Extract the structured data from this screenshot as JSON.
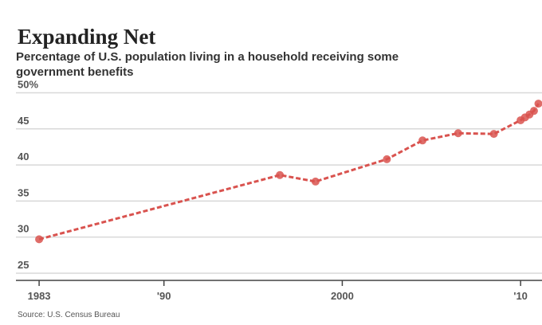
{
  "chart_data": {
    "type": "line",
    "title": "Expanding Net",
    "subtitle": "Percentage of U.S. population living in a household receiving some government benefits",
    "source": "Source: U.S. Census Bureau",
    "x": [
      1983,
      1996.5,
      1998.5,
      2002.5,
      2004.5,
      2006.5,
      2008.5,
      2010,
      2010.25,
      2010.5,
      2010.75,
      2011
    ],
    "series": [
      {
        "color": "#d9534f",
        "values": [
          29.7,
          38.6,
          37.7,
          40.8,
          43.4,
          44.4,
          44.3,
          46.2,
          46.6,
          47.0,
          47.5,
          48.5
        ]
      }
    ],
    "xlim": [
      1981.7,
      2011.2
    ],
    "ylim": [
      24,
      50.5
    ],
    "xticks": [
      1983,
      {
        "value": 1990,
        "label": "'90"
      },
      2000,
      {
        "value": 2010,
        "label": "'10"
      }
    ],
    "yticks": [
      {
        "value": 50,
        "label": "50%"
      },
      45,
      40,
      35,
      30,
      25
    ],
    "grid": true
  }
}
